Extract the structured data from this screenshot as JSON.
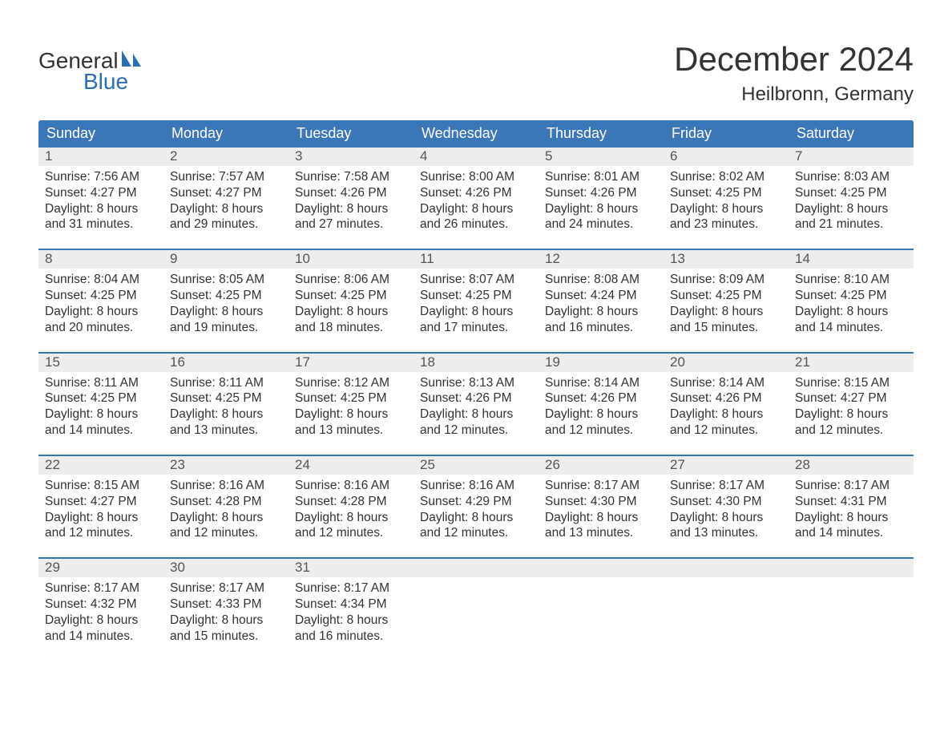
{
  "logo": {
    "text1": "General",
    "text2": "Blue",
    "text1_color": "#333333",
    "text2_color": "#2b6fb0",
    "icon_color": "#2b6fb0"
  },
  "title": "December 2024",
  "location": "Heilbronn, Germany",
  "colors": {
    "header_bg": "#3b77b6",
    "header_text": "#ffffff",
    "daynum_bg": "#ededed",
    "daynum_text": "#555555",
    "rule": "#3b77b6",
    "body_text": "#333333",
    "page_bg": "#ffffff"
  },
  "fonts": {
    "title_size_pt": 32,
    "location_size_pt": 18,
    "weekday_size_pt": 14,
    "daynum_size_pt": 13,
    "detail_size_pt": 12,
    "logo_size_pt": 21
  },
  "weekdays": [
    "Sunday",
    "Monday",
    "Tuesday",
    "Wednesday",
    "Thursday",
    "Friday",
    "Saturday"
  ],
  "labels": {
    "sunrise": "Sunrise:",
    "sunset": "Sunset:",
    "daylight": "Daylight:"
  },
  "weeks": [
    {
      "days": [
        {
          "num": "1",
          "sunrise": "7:56 AM",
          "sunset": "4:27 PM",
          "daylight_l1": "8 hours",
          "daylight_l2": "and 31 minutes."
        },
        {
          "num": "2",
          "sunrise": "7:57 AM",
          "sunset": "4:27 PM",
          "daylight_l1": "8 hours",
          "daylight_l2": "and 29 minutes."
        },
        {
          "num": "3",
          "sunrise": "7:58 AM",
          "sunset": "4:26 PM",
          "daylight_l1": "8 hours",
          "daylight_l2": "and 27 minutes."
        },
        {
          "num": "4",
          "sunrise": "8:00 AM",
          "sunset": "4:26 PM",
          "daylight_l1": "8 hours",
          "daylight_l2": "and 26 minutes."
        },
        {
          "num": "5",
          "sunrise": "8:01 AM",
          "sunset": "4:26 PM",
          "daylight_l1": "8 hours",
          "daylight_l2": "and 24 minutes."
        },
        {
          "num": "6",
          "sunrise": "8:02 AM",
          "sunset": "4:25 PM",
          "daylight_l1": "8 hours",
          "daylight_l2": "and 23 minutes."
        },
        {
          "num": "7",
          "sunrise": "8:03 AM",
          "sunset": "4:25 PM",
          "daylight_l1": "8 hours",
          "daylight_l2": "and 21 minutes."
        }
      ]
    },
    {
      "days": [
        {
          "num": "8",
          "sunrise": "8:04 AM",
          "sunset": "4:25 PM",
          "daylight_l1": "8 hours",
          "daylight_l2": "and 20 minutes."
        },
        {
          "num": "9",
          "sunrise": "8:05 AM",
          "sunset": "4:25 PM",
          "daylight_l1": "8 hours",
          "daylight_l2": "and 19 minutes."
        },
        {
          "num": "10",
          "sunrise": "8:06 AM",
          "sunset": "4:25 PM",
          "daylight_l1": "8 hours",
          "daylight_l2": "and 18 minutes."
        },
        {
          "num": "11",
          "sunrise": "8:07 AM",
          "sunset": "4:25 PM",
          "daylight_l1": "8 hours",
          "daylight_l2": "and 17 minutes."
        },
        {
          "num": "12",
          "sunrise": "8:08 AM",
          "sunset": "4:24 PM",
          "daylight_l1": "8 hours",
          "daylight_l2": "and 16 minutes."
        },
        {
          "num": "13",
          "sunrise": "8:09 AM",
          "sunset": "4:25 PM",
          "daylight_l1": "8 hours",
          "daylight_l2": "and 15 minutes."
        },
        {
          "num": "14",
          "sunrise": "8:10 AM",
          "sunset": "4:25 PM",
          "daylight_l1": "8 hours",
          "daylight_l2": "and 14 minutes."
        }
      ]
    },
    {
      "days": [
        {
          "num": "15",
          "sunrise": "8:11 AM",
          "sunset": "4:25 PM",
          "daylight_l1": "8 hours",
          "daylight_l2": "and 14 minutes."
        },
        {
          "num": "16",
          "sunrise": "8:11 AM",
          "sunset": "4:25 PM",
          "daylight_l1": "8 hours",
          "daylight_l2": "and 13 minutes."
        },
        {
          "num": "17",
          "sunrise": "8:12 AM",
          "sunset": "4:25 PM",
          "daylight_l1": "8 hours",
          "daylight_l2": "and 13 minutes."
        },
        {
          "num": "18",
          "sunrise": "8:13 AM",
          "sunset": "4:26 PM",
          "daylight_l1": "8 hours",
          "daylight_l2": "and 12 minutes."
        },
        {
          "num": "19",
          "sunrise": "8:14 AM",
          "sunset": "4:26 PM",
          "daylight_l1": "8 hours",
          "daylight_l2": "and 12 minutes."
        },
        {
          "num": "20",
          "sunrise": "8:14 AM",
          "sunset": "4:26 PM",
          "daylight_l1": "8 hours",
          "daylight_l2": "and 12 minutes."
        },
        {
          "num": "21",
          "sunrise": "8:15 AM",
          "sunset": "4:27 PM",
          "daylight_l1": "8 hours",
          "daylight_l2": "and 12 minutes."
        }
      ]
    },
    {
      "days": [
        {
          "num": "22",
          "sunrise": "8:15 AM",
          "sunset": "4:27 PM",
          "daylight_l1": "8 hours",
          "daylight_l2": "and 12 minutes."
        },
        {
          "num": "23",
          "sunrise": "8:16 AM",
          "sunset": "4:28 PM",
          "daylight_l1": "8 hours",
          "daylight_l2": "and 12 minutes."
        },
        {
          "num": "24",
          "sunrise": "8:16 AM",
          "sunset": "4:28 PM",
          "daylight_l1": "8 hours",
          "daylight_l2": "and 12 minutes."
        },
        {
          "num": "25",
          "sunrise": "8:16 AM",
          "sunset": "4:29 PM",
          "daylight_l1": "8 hours",
          "daylight_l2": "and 12 minutes."
        },
        {
          "num": "26",
          "sunrise": "8:17 AM",
          "sunset": "4:30 PM",
          "daylight_l1": "8 hours",
          "daylight_l2": "and 13 minutes."
        },
        {
          "num": "27",
          "sunrise": "8:17 AM",
          "sunset": "4:30 PM",
          "daylight_l1": "8 hours",
          "daylight_l2": "and 13 minutes."
        },
        {
          "num": "28",
          "sunrise": "8:17 AM",
          "sunset": "4:31 PM",
          "daylight_l1": "8 hours",
          "daylight_l2": "and 14 minutes."
        }
      ]
    },
    {
      "days": [
        {
          "num": "29",
          "sunrise": "8:17 AM",
          "sunset": "4:32 PM",
          "daylight_l1": "8 hours",
          "daylight_l2": "and 14 minutes."
        },
        {
          "num": "30",
          "sunrise": "8:17 AM",
          "sunset": "4:33 PM",
          "daylight_l1": "8 hours",
          "daylight_l2": "and 15 minutes."
        },
        {
          "num": "31",
          "sunrise": "8:17 AM",
          "sunset": "4:34 PM",
          "daylight_l1": "8 hours",
          "daylight_l2": "and 16 minutes."
        },
        {
          "empty": true
        },
        {
          "empty": true
        },
        {
          "empty": true
        },
        {
          "empty": true
        }
      ]
    }
  ]
}
